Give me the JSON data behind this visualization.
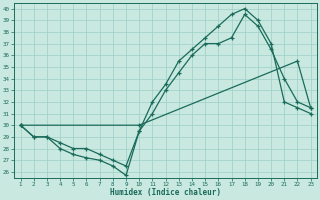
{
  "xlabel": "Humidex (Indice chaleur)",
  "xlim": [
    0.5,
    23.5
  ],
  "ylim": [
    25.5,
    40.5
  ],
  "yticks": [
    26,
    27,
    28,
    29,
    30,
    31,
    32,
    33,
    34,
    35,
    36,
    37,
    38,
    39,
    40
  ],
  "xticks": [
    1,
    2,
    3,
    4,
    5,
    6,
    7,
    8,
    9,
    10,
    11,
    12,
    13,
    14,
    15,
    16,
    17,
    18,
    19,
    20,
    21,
    22,
    23
  ],
  "bg_color": "#c8e8e0",
  "line_color": "#1a6b5a",
  "grid_color": "#9ecfca",
  "line1_x": [
    1,
    2,
    3,
    4,
    5,
    6,
    7,
    8,
    9,
    10,
    11,
    12,
    13,
    14,
    15,
    16,
    17,
    18,
    19,
    20,
    21,
    22,
    23
  ],
  "line1_y": [
    30,
    29,
    29,
    28,
    27.5,
    27.2,
    27,
    26.5,
    25.7,
    29.5,
    31,
    33,
    34.5,
    36,
    37,
    37,
    37.5,
    39.5,
    38.5,
    36.5,
    34,
    32,
    31.5
  ],
  "line2_x": [
    1,
    2,
    3,
    4,
    5,
    6,
    7,
    8,
    9,
    10,
    11,
    12,
    13,
    14,
    15,
    16,
    17,
    18,
    19,
    20,
    21,
    22,
    23
  ],
  "line2_y": [
    30,
    29,
    29,
    28.5,
    28,
    28,
    27.5,
    27,
    26.5,
    29.5,
    32,
    33.5,
    35.5,
    36.5,
    37.5,
    38.5,
    39.5,
    40,
    39,
    37,
    32,
    31.5,
    31
  ],
  "line3_x": [
    1,
    10,
    22,
    23
  ],
  "line3_y": [
    30,
    30,
    35.5,
    31.5
  ]
}
